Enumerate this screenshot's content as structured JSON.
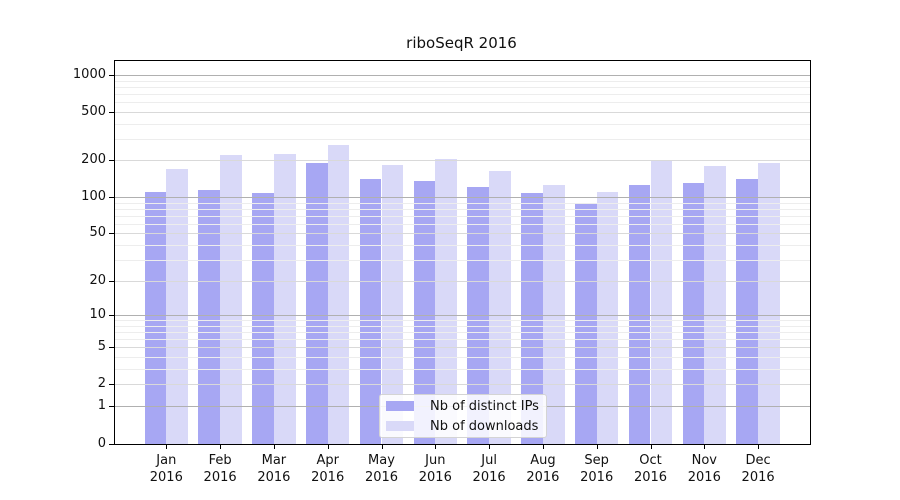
{
  "title": "riboSeqR 2016",
  "legend": {
    "items": [
      {
        "label": "Nb of distinct IPs",
        "color": "#a7a7f3"
      },
      {
        "label": "Nb of downloads",
        "color": "#d9d9f8"
      }
    ]
  },
  "chart_data": {
    "type": "bar",
    "title": "riboSeqR 2016",
    "categories": [
      "Jan",
      "Feb",
      "Mar",
      "Apr",
      "May",
      "Jun",
      "Jul",
      "Aug",
      "Sep",
      "Oct",
      "Nov",
      "Dec"
    ],
    "category_year": "2016",
    "series": [
      {
        "name": "Nb of distinct IPs",
        "color": "#a7a7f3",
        "values": [
          110,
          114,
          108,
          189,
          142,
          135,
          121,
          107,
          89,
          126,
          130,
          142
        ]
      },
      {
        "name": "Nb of downloads",
        "color": "#d9d9f8",
        "values": [
          171,
          221,
          227,
          270,
          182,
          204,
          163,
          125,
          109,
          201,
          179,
          190
        ]
      }
    ],
    "xlabel": "",
    "ylabel": "",
    "y_axis": {
      "scale": "log1p",
      "ticks": [
        0,
        1,
        2,
        5,
        10,
        20,
        50,
        100,
        200,
        500,
        1000
      ],
      "range": [
        0,
        1000
      ]
    },
    "grid": "on",
    "grid_over_bars": true,
    "legend_position": "inside-bottom-center"
  },
  "colors": {
    "bar_ips": "#a7a7f3",
    "bar_downloads": "#d9d9f8",
    "grid_major": "#b0b0b0",
    "grid_mid": "#d9d9d9",
    "grid_minor": "#ededed",
    "axis": "#000000",
    "text": "#111111",
    "background": "#ffffff"
  }
}
